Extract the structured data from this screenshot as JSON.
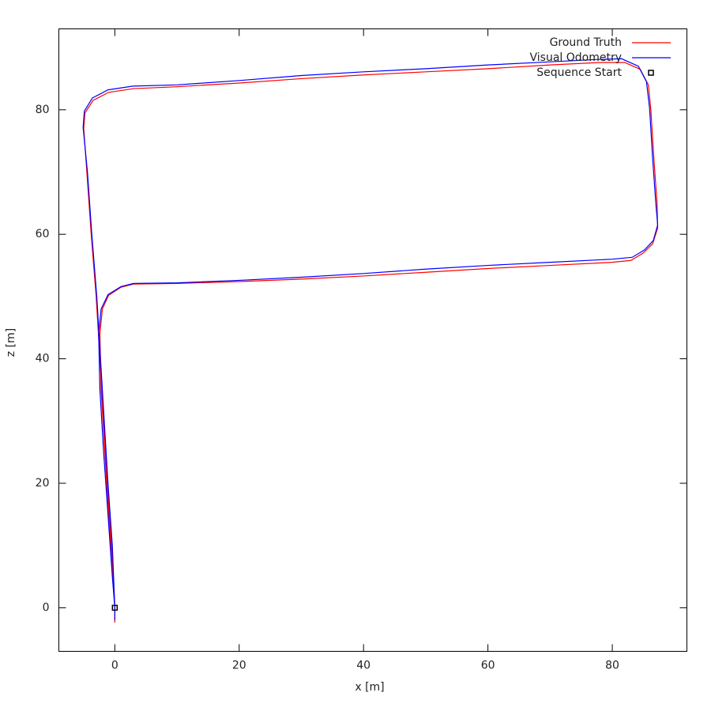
{
  "chart_data": {
    "type": "line",
    "xlabel": "x [m]",
    "ylabel": "z [m]",
    "xlim": [
      -9,
      92
    ],
    "ylim": [
      -7,
      93
    ],
    "xticks": [
      0,
      20,
      40,
      60,
      80
    ],
    "yticks": [
      0,
      20,
      40,
      60,
      80
    ],
    "legend": "top right",
    "series": [
      {
        "name": "Ground Truth",
        "color": "#ff0000",
        "marker": "line",
        "x": [
          0,
          -0.5,
          -1.2,
          -1.8,
          -2.4,
          -3,
          -3.8,
          -4.5,
          -5,
          -4.8,
          -3.5,
          -1,
          3,
          10,
          20,
          30,
          40,
          50,
          60,
          70,
          78,
          82,
          84.5,
          85.8,
          86.2,
          86.7,
          87.2,
          87.3,
          86.5,
          85,
          83,
          80,
          70,
          60,
          50,
          40,
          30,
          20,
          10,
          3,
          1,
          -1,
          -2,
          -2.4,
          -2.2,
          -1.6,
          -1,
          -0.3,
          0,
          0
        ],
        "values": [
          0,
          10,
          20,
          30,
          40,
          50,
          60,
          70,
          77,
          79.5,
          81.5,
          82.8,
          83.4,
          83.7,
          84.3,
          85,
          85.6,
          86.1,
          86.6,
          87.2,
          87.6,
          87.6,
          86.5,
          84,
          80,
          72,
          65,
          61,
          58.5,
          57,
          55.8,
          55.5,
          55,
          54.5,
          53.9,
          53.3,
          52.8,
          52.4,
          52.1,
          52,
          51.5,
          50.2,
          48,
          44,
          35,
          25,
          15,
          5,
          0,
          -2.4
        ]
      },
      {
        "name": "Visual Odometry",
        "color": "#0000ff",
        "marker": "line",
        "x": [
          0,
          -0.4,
          -1.1,
          -1.7,
          -2.3,
          -2.9,
          -3.7,
          -4.4,
          -5.1,
          -4.9,
          -3.6,
          -1.1,
          2.9,
          10,
          20,
          30,
          40,
          50,
          60,
          70,
          78,
          81.5,
          84.2,
          85.5,
          86,
          86.5,
          87,
          87.3,
          86.6,
          85.2,
          83.2,
          80,
          70,
          60,
          50,
          40,
          30,
          20,
          10,
          3,
          1,
          -1.1,
          -2.2,
          -2.6,
          -2.4,
          -1.8,
          -1.1,
          -0.4,
          0,
          0
        ],
        "values": [
          0,
          10,
          20,
          30,
          40,
          50,
          60,
          70,
          77.2,
          79.8,
          81.9,
          83.2,
          83.8,
          84,
          84.7,
          85.5,
          86.1,
          86.6,
          87.2,
          87.7,
          88.1,
          88.2,
          87,
          84.5,
          80.2,
          72,
          65,
          61.5,
          59,
          57.5,
          56.3,
          56,
          55.5,
          55,
          54.4,
          53.7,
          53.1,
          52.6,
          52.2,
          52.1,
          51.6,
          50.3,
          48,
          44,
          35,
          25,
          15,
          5,
          0,
          -2
        ]
      },
      {
        "name": "Sequence Start",
        "color": "#000000",
        "marker": "square",
        "x": [
          0
        ],
        "values": [
          0
        ]
      }
    ]
  }
}
